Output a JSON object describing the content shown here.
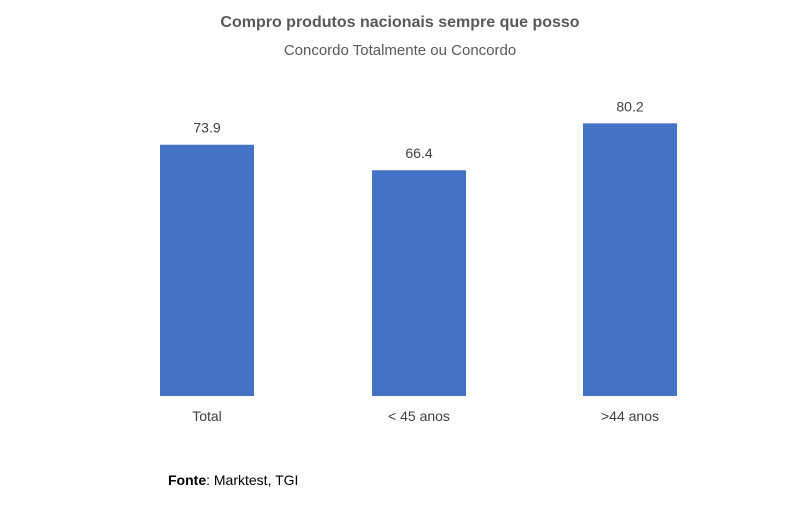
{
  "chart_data": {
    "type": "bar",
    "title": "Compro produtos nacionais sempre que posso",
    "subtitle": "Concordo  Totalmente ou Concordo",
    "categories": [
      "Total",
      "< 45 anos",
      ">44 anos"
    ],
    "values": [
      73.9,
      66.4,
      80.2
    ],
    "value_labels": [
      "73.9",
      "66.4",
      "80.2"
    ],
    "ylim": [
      0,
      100
    ],
    "grid": false,
    "legend": "none",
    "bar_color": "#4472C4"
  },
  "source": {
    "label": "Fonte",
    "text": " Marktest, TGI"
  }
}
